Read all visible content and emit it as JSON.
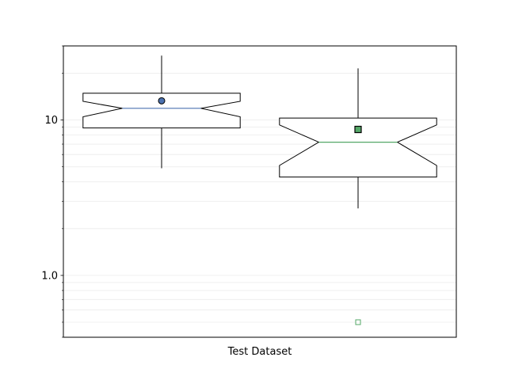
{
  "chart_data": {
    "type": "boxplot",
    "title": "",
    "xlabel": "Test Dataset",
    "ylabel": "",
    "yscale": "log",
    "ylim": [
      0.4,
      30
    ],
    "yticks": [
      {
        "value": 1,
        "label": "1.0"
      },
      {
        "value": 10,
        "label": "10"
      }
    ],
    "grid": {
      "y_minor": true,
      "color": "#ebebeb"
    },
    "notched": true,
    "boxes": [
      {
        "whisker_low": 4.9,
        "q1": 8.9,
        "notch_low": 10.5,
        "median": 11.9,
        "notch_high": 13.2,
        "q3": 14.9,
        "whisker_high": 26,
        "mean": 13.3,
        "mean_marker": "circle",
        "mean_color": "#4c72b0",
        "median_color": "#4c72b0",
        "outliers": [],
        "outlier_marker": "circle"
      },
      {
        "whisker_low": 2.7,
        "q1": 4.3,
        "notch_low": 5.1,
        "median": 7.2,
        "notch_high": 9.3,
        "q3": 10.3,
        "whisker_high": 21.5,
        "mean": 8.7,
        "mean_marker": "square",
        "mean_color": "#55a868",
        "median_color": "#55a868",
        "outliers": [
          0.5
        ],
        "outlier_marker": "square"
      }
    ]
  }
}
